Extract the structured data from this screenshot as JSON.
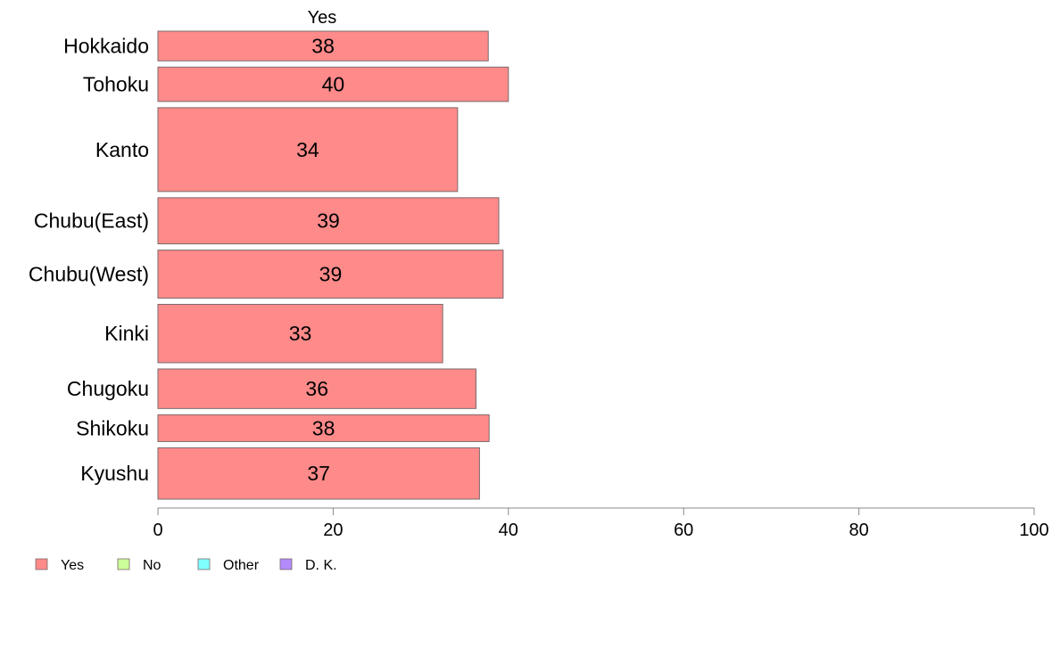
{
  "chart_data": {
    "type": "bar",
    "orientation": "horizontal",
    "title": "Yes",
    "categories": [
      "Hokkaido",
      "Tohoku",
      "Kanto",
      "Chubu(East)",
      "Chubu(West)",
      "Kinki",
      "Chugoku",
      "Shikoku",
      "Kyushu"
    ],
    "category_weights": [
      0.63,
      0.73,
      1.78,
      0.98,
      1.02,
      1.24,
      0.84,
      0.57,
      1.09
    ],
    "series": [
      {
        "name": "Yes",
        "color": "#ff8a8a",
        "values": [
          37.7,
          40.0,
          34.2,
          38.9,
          39.4,
          32.5,
          36.3,
          37.8,
          36.7
        ],
        "labels": [
          "38",
          "40",
          "34",
          "39",
          "39",
          "33",
          "36",
          "38",
          "37"
        ]
      }
    ],
    "xlim": [
      0,
      100
    ],
    "xticks": [
      "0",
      "20",
      "40",
      "60",
      "80",
      "100"
    ],
    "grid": false,
    "legend": {
      "placement": "bottom-left",
      "entries": [
        {
          "label": "Yes",
          "color": "#ff8a8a"
        },
        {
          "label": "No",
          "color": "#ccff99"
        },
        {
          "label": "Other",
          "color": "#80ffff"
        },
        {
          "label": "D. K.",
          "color": "#b38aff"
        }
      ]
    }
  }
}
